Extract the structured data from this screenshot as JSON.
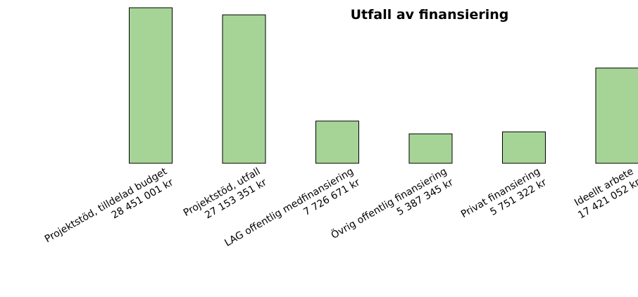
{
  "chart_data": {
    "type": "bar",
    "title": "Utfall av finansiering",
    "categories": [
      "Projektstöd, tilldelad budget",
      "Projektstöd, utfall",
      "LAG offentlig medfinansiering",
      "Övrig offentlig finansiering",
      "Privat finansiering",
      "Ideellt arbete"
    ],
    "values": [
      28451001,
      27153351,
      7726671,
      5387345,
      5751322,
      17421052
    ],
    "value_labels": [
      "28 451 001 kr",
      "27 153 351 kr",
      "7 726 671 kr",
      "5 387 345 kr",
      "5 751 322 kr",
      "17 421 052 kr"
    ],
    "color": "#a6d496"
  }
}
